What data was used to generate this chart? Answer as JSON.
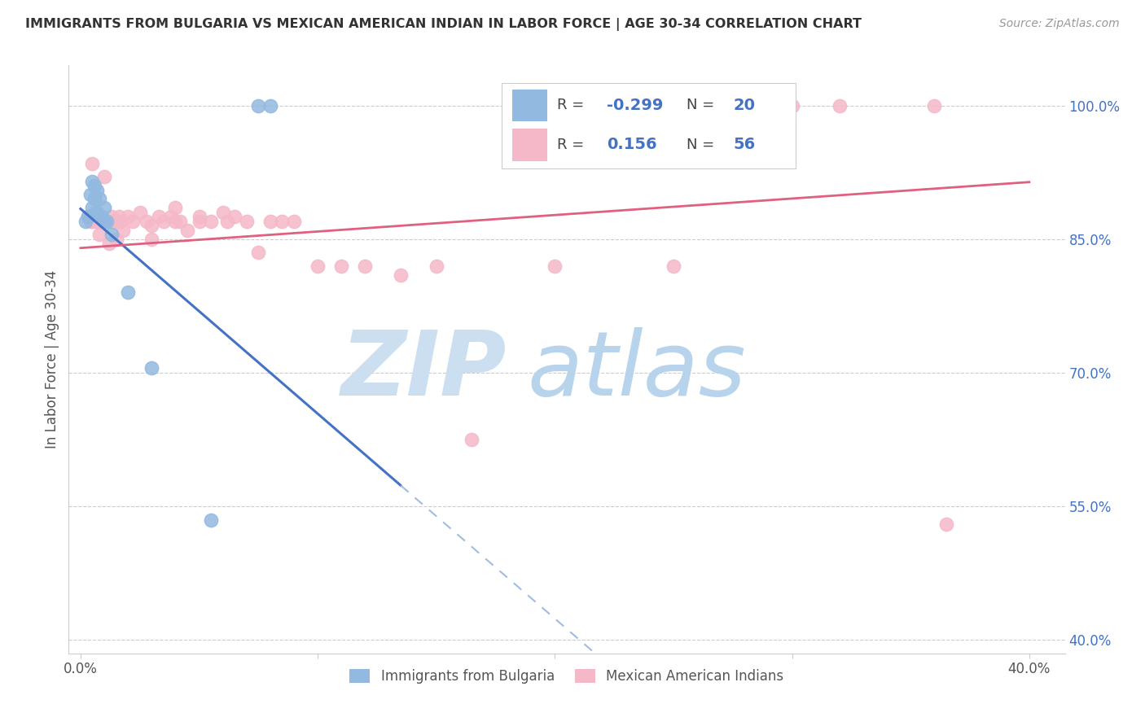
{
  "title": "IMMIGRANTS FROM BULGARIA VS MEXICAN AMERICAN INDIAN IN LABOR FORCE | AGE 30-34 CORRELATION CHART",
  "source": "Source: ZipAtlas.com",
  "ylabel": "In Labor Force | Age 30-34",
  "legend_label1": "Immigrants from Bulgaria",
  "legend_label2": "Mexican American Indians",
  "R1": "-0.299",
  "N1": "20",
  "R2": "0.156",
  "N2": "56",
  "blue_color": "#92b9e0",
  "pink_color": "#f5b8c8",
  "blue_line_color": "#4472c4",
  "pink_line_color": "#e06080",
  "dashed_line_color": "#a0bce0",
  "watermark_zip_color": "#ccdff0",
  "watermark_atlas_color": "#b8d4ec",
  "bg_color": "#ffffff",
  "grid_color": "#cccccc",
  "blue_x": [
    0.002,
    0.003,
    0.004,
    0.005,
    0.005,
    0.006,
    0.006,
    0.007,
    0.007,
    0.008,
    0.009,
    0.01,
    0.01,
    0.011,
    0.013,
    0.02,
    0.03,
    0.055,
    0.075,
    0.08
  ],
  "blue_y": [
    0.87,
    0.875,
    0.9,
    0.915,
    0.885,
    0.91,
    0.895,
    0.905,
    0.88,
    0.895,
    0.875,
    0.885,
    0.87,
    0.87,
    0.855,
    0.79,
    0.705,
    0.535,
    1.0,
    1.0
  ],
  "pink_x": [
    0.003,
    0.004,
    0.005,
    0.005,
    0.006,
    0.007,
    0.008,
    0.008,
    0.009,
    0.01,
    0.011,
    0.012,
    0.012,
    0.013,
    0.014,
    0.015,
    0.015,
    0.016,
    0.017,
    0.018,
    0.02,
    0.022,
    0.025,
    0.028,
    0.03,
    0.03,
    0.033,
    0.035,
    0.038,
    0.04,
    0.04,
    0.042,
    0.045,
    0.05,
    0.05,
    0.055,
    0.06,
    0.062,
    0.065,
    0.07,
    0.075,
    0.08,
    0.085,
    0.09,
    0.1,
    0.11,
    0.12,
    0.135,
    0.15,
    0.165,
    0.2,
    0.25,
    0.3,
    0.32,
    0.36,
    0.365
  ],
  "pink_y": [
    0.875,
    0.87,
    0.935,
    0.87,
    0.88,
    0.87,
    0.855,
    0.87,
    0.87,
    0.92,
    0.87,
    0.845,
    0.87,
    0.875,
    0.87,
    0.87,
    0.85,
    0.875,
    0.87,
    0.86,
    0.875,
    0.87,
    0.88,
    0.87,
    0.865,
    0.85,
    0.875,
    0.87,
    0.875,
    0.87,
    0.885,
    0.87,
    0.86,
    0.875,
    0.87,
    0.87,
    0.88,
    0.87,
    0.875,
    0.87,
    0.835,
    0.87,
    0.87,
    0.87,
    0.82,
    0.82,
    0.82,
    0.81,
    0.82,
    0.625,
    0.82,
    0.82,
    1.0,
    1.0,
    1.0,
    0.53
  ],
  "blue_line_x0": 0.0,
  "blue_line_x_solid_end": 0.135,
  "blue_line_x_dash_end": 0.4,
  "blue_line_y0": 0.884,
  "blue_line_slope": -2.3,
  "pink_line_x0": 0.0,
  "pink_line_x_end": 0.4,
  "pink_line_y0": 0.84,
  "pink_line_slope": 0.185,
  "xlim": [
    -0.005,
    0.415
  ],
  "ylim": [
    0.385,
    1.045
  ],
  "x_ticks": [
    0.0,
    0.1,
    0.2,
    0.3,
    0.4
  ],
  "x_tick_labels": [
    "0.0%",
    "",
    "",
    "",
    "40.0%"
  ],
  "y_ticks": [
    1.0,
    0.85,
    0.7,
    0.55,
    0.4
  ],
  "y_tick_labels": [
    "100.0%",
    "85.0%",
    "70.0%",
    "55.0%",
    "40.0%"
  ]
}
